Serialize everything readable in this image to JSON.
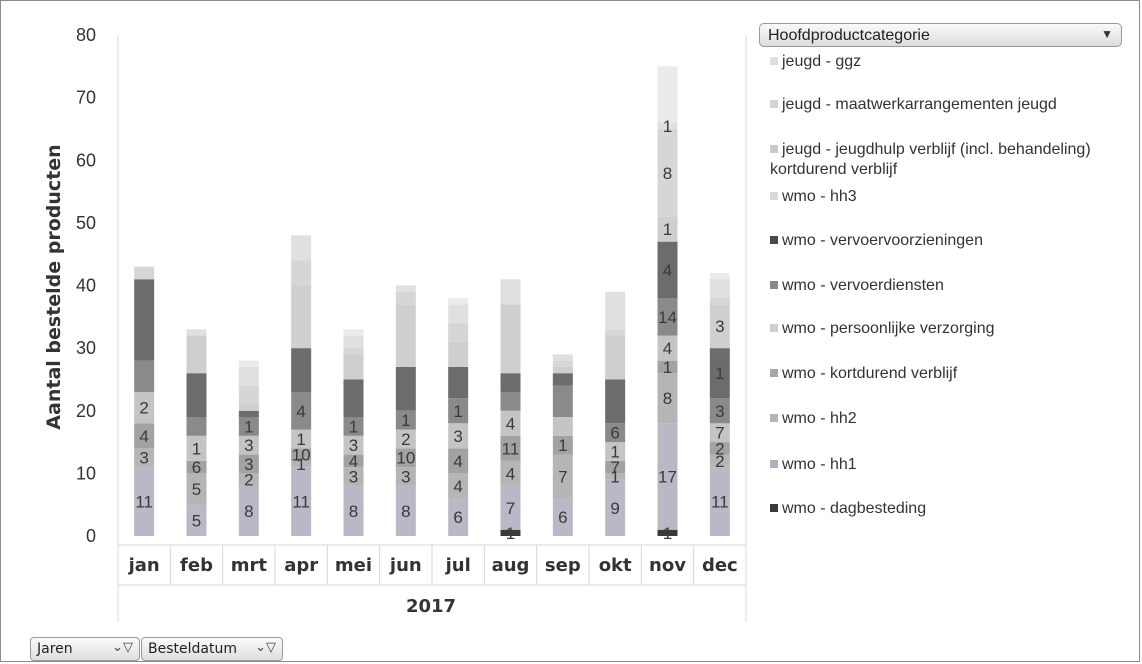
{
  "chart_data": {
    "type": "bar",
    "stacked": true,
    "categories": [
      "jan",
      "feb",
      "mrt",
      "apr",
      "mei",
      "jun",
      "jul",
      "aug",
      "sep",
      "okt",
      "nov",
      "dec"
    ],
    "xlabel": "2017",
    "ylabel": "Aantal bestelde producten",
    "ylim": [
      0,
      80
    ],
    "yticks": [
      0,
      10,
      20,
      30,
      40,
      50,
      60,
      70,
      80
    ],
    "grid": false,
    "legend_title": "Hoofdproductcategorie",
    "legend_position": "right",
    "series": [
      {
        "name": "wmo - dagbesteding",
        "color": "#3a3a3a",
        "values": [
          0,
          0,
          0,
          0,
          0,
          0,
          0,
          1,
          0,
          0,
          1,
          0
        ]
      },
      {
        "name": "wmo - hh1",
        "color": "#b8b8c6",
        "values": [
          11,
          5,
          8,
          11,
          8,
          8,
          6,
          7,
          6,
          9,
          17,
          11
        ]
      },
      {
        "name": "wmo - hh2",
        "color": "#b5b5b5",
        "values": [
          3,
          5,
          2,
          1,
          3,
          3,
          4,
          4,
          7,
          1,
          8,
          2
        ]
      },
      {
        "name": "wmo - kortdurend verblijf",
        "color": "#a2a2a2",
        "values": [
          4,
          2,
          3,
          2,
          2,
          3,
          4,
          4,
          3,
          2,
          2,
          2
        ]
      },
      {
        "name": "wmo - persoonlijke verzorging",
        "color": "#c4c4c4",
        "values": [
          5,
          4,
          3,
          3,
          3,
          3,
          4,
          4,
          3,
          3,
          4,
          3
        ]
      },
      {
        "name": "wmo - vervoerdiensten",
        "color": "#8a8a8a",
        "values": [
          5,
          3,
          3,
          6,
          3,
          3,
          4,
          3,
          5,
          3,
          6,
          4
        ]
      },
      {
        "name": "wmo - vervoervoorzieningen",
        "color": "#6c6c6c",
        "values": [
          13,
          7,
          1,
          7,
          6,
          7,
          5,
          3,
          2,
          7,
          9,
          8
        ]
      },
      {
        "name": "wmo - hh3",
        "color": "#cfcfcf",
        "values": [
          0,
          6,
          1,
          10,
          4,
          10,
          4,
          11,
          1,
          7,
          4,
          7
        ]
      },
      {
        "name": "jeugd - jeugdhulp verblijf (incl. behandeling) kortdurend verblijf",
        "color": "#d6d6d6",
        "values": [
          2,
          0,
          3,
          4,
          1,
          2,
          3,
          0,
          1,
          1,
          14,
          1
        ]
      },
      {
        "name": "jeugd - maatwerkarrangementen jeugd",
        "color": "#e0e0e0",
        "values": [
          0,
          1,
          3,
          4,
          2,
          1,
          3,
          4,
          1,
          6,
          1,
          3
        ]
      },
      {
        "name": "jeugd - ggz",
        "color": "#ebebeb",
        "values": [
          0,
          0,
          1,
          0,
          1,
          0,
          1,
          0,
          0,
          0,
          9,
          1
        ]
      }
    ],
    "data_labels": [
      {
        "category": "jan",
        "values": [
          "11",
          "3",
          "4",
          "2"
        ]
      },
      {
        "category": "feb",
        "values": [
          "5",
          "5",
          "6",
          "1"
        ]
      },
      {
        "category": "mrt",
        "values": [
          "8",
          "2",
          "3",
          "3",
          "1"
        ]
      },
      {
        "category": "apr",
        "values": [
          "11",
          "1",
          "10",
          "1",
          "4"
        ]
      },
      {
        "category": "mei",
        "values": [
          "8",
          "3",
          "4",
          "3",
          "1"
        ]
      },
      {
        "category": "jun",
        "values": [
          "8",
          "3",
          "10",
          "2",
          "1"
        ]
      },
      {
        "category": "jul",
        "values": [
          "6",
          "4",
          "4",
          "3",
          "1"
        ]
      },
      {
        "category": "aug",
        "values": [
          "1",
          "7",
          "4",
          "11",
          "4"
        ]
      },
      {
        "category": "sep",
        "values": [
          "6",
          "7",
          "1"
        ]
      },
      {
        "category": "okt",
        "values": [
          "9",
          "1",
          "7",
          "1",
          "6"
        ]
      },
      {
        "category": "nov",
        "values": [
          "1",
          "17",
          "8",
          "1",
          "4",
          "14",
          "4",
          "1",
          "8",
          "1"
        ]
      },
      {
        "category": "dec",
        "values": [
          "11",
          "2",
          "2",
          "7",
          "3",
          "1",
          "3"
        ]
      }
    ]
  },
  "legend": {
    "title": "Hoofdproductcategorie",
    "items": [
      {
        "label": "jeugd - ggz",
        "color": "#dedede"
      },
      {
        "label": "jeugd - maatwerkarrangementen jeugd",
        "color": "#d4d4d4"
      },
      {
        "label": "jeugd - jeugdhulp verblijf (incl. behandeling) kortdurend verblijf",
        "color": "#cacaca"
      },
      {
        "label": "wmo - hh3",
        "color": "#d8d8e2"
      },
      {
        "label": "wmo - vervoervoorzieningen",
        "color": "#4a4a4a"
      },
      {
        "label": "wmo - vervoerdiensten",
        "color": "#8a8a8a"
      },
      {
        "label": "wmo - persoonlijke verzorging",
        "color": "#cfcfcf"
      },
      {
        "label": "wmo - kortdurend verblijf",
        "color": "#a8a8a8"
      },
      {
        "label": "wmo - hh2",
        "color": "#b5b5b5"
      },
      {
        "label": "wmo - hh1",
        "color": "#b0b0c0"
      },
      {
        "label": "wmo - dagbesteding",
        "color": "#3a3a3a"
      }
    ]
  },
  "filters": {
    "jaren_label": "Jaren",
    "besteldatum_label": "Besteldatum"
  }
}
